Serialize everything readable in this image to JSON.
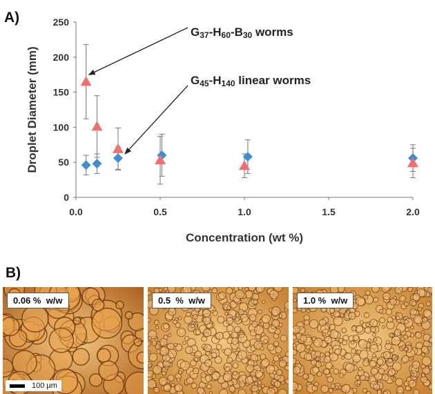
{
  "panel_a_label": "A)",
  "panel_b_label": "B)",
  "chart_data": {
    "type": "scatter",
    "title": "",
    "xlabel": "Concentration (wt %)",
    "ylabel": "Droplet Diameter (mm)",
    "xlim": [
      0,
      2.0
    ],
    "ylim": [
      0,
      250
    ],
    "xticks": [
      "0.0",
      "0.5",
      "1.0",
      "1.5",
      "2.0"
    ],
    "yticks": [
      "0",
      "50",
      "100",
      "150",
      "200",
      "250"
    ],
    "grid": false,
    "series": [
      {
        "marker": "diamond",
        "color": "#3d8fd4",
        "points": [
          {
            "x": 0.06,
            "y": 46,
            "err": 14
          },
          {
            "x": 0.125,
            "y": 48,
            "err": 14
          },
          {
            "x": 0.25,
            "y": 56,
            "err": 16
          },
          {
            "x": 0.51,
            "y": 60,
            "err": 30
          },
          {
            "x": 1.02,
            "y": 58,
            "err": 24
          },
          {
            "x": 2.0,
            "y": 56,
            "err": 19
          }
        ]
      },
      {
        "marker": "triangle",
        "color": "#f07070",
        "points": [
          {
            "x": 0.06,
            "y": 165,
            "err": 53
          },
          {
            "x": 0.125,
            "y": 101,
            "err": 44
          },
          {
            "x": 0.25,
            "y": 69,
            "err": 30
          },
          {
            "x": 0.5,
            "y": 53,
            "err": 34
          },
          {
            "x": 1.0,
            "y": 45,
            "err": 17
          },
          {
            "x": 2.0,
            "y": 49,
            "err": 21
          }
        ]
      }
    ],
    "annotations": [
      {
        "base": "G",
        "sub1": "37",
        "mid1": "-H",
        "sub2": "60",
        "mid2": "-B",
        "sub3": "30",
        "tail": " worms",
        "points_to": {
          "x": 0.06,
          "y": 165
        }
      },
      {
        "base": "G",
        "sub1": "45",
        "mid1": "-H",
        "sub2": "140",
        "mid2": "",
        "sub3": "",
        "tail": " linear worms",
        "points_to": {
          "x": 0.25,
          "y": 56
        }
      }
    ]
  },
  "micrographs": [
    {
      "label": "0.06 %  w/w",
      "scale_bar": "100 µm",
      "tone": "large"
    },
    {
      "label": "0.5  %  w/w",
      "scale_bar": "",
      "tone": "small"
    },
    {
      "label": "1.0 %  w/w",
      "scale_bar": "",
      "tone": "small"
    }
  ]
}
